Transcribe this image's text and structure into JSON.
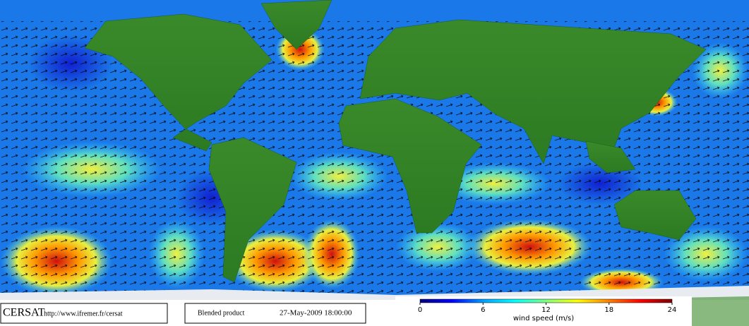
{
  "footer": {
    "logo": "CERSAT",
    "url": "http://www.ifremer.fr/cersat",
    "product": "Blended product",
    "date": "27-May-2009 18:00:00"
  },
  "colorbar": {
    "label": "wind speed (m/s)",
    "lim": [
      0,
      24
    ],
    "ticks": [
      0,
      6,
      12,
      18,
      24
    ],
    "colors": [
      "#000080",
      "#0000ff",
      "#00a0ff",
      "#00ffff",
      "#80ff80",
      "#ffff00",
      "#ff8000",
      "#ff0000",
      "#800000"
    ]
  }
}
